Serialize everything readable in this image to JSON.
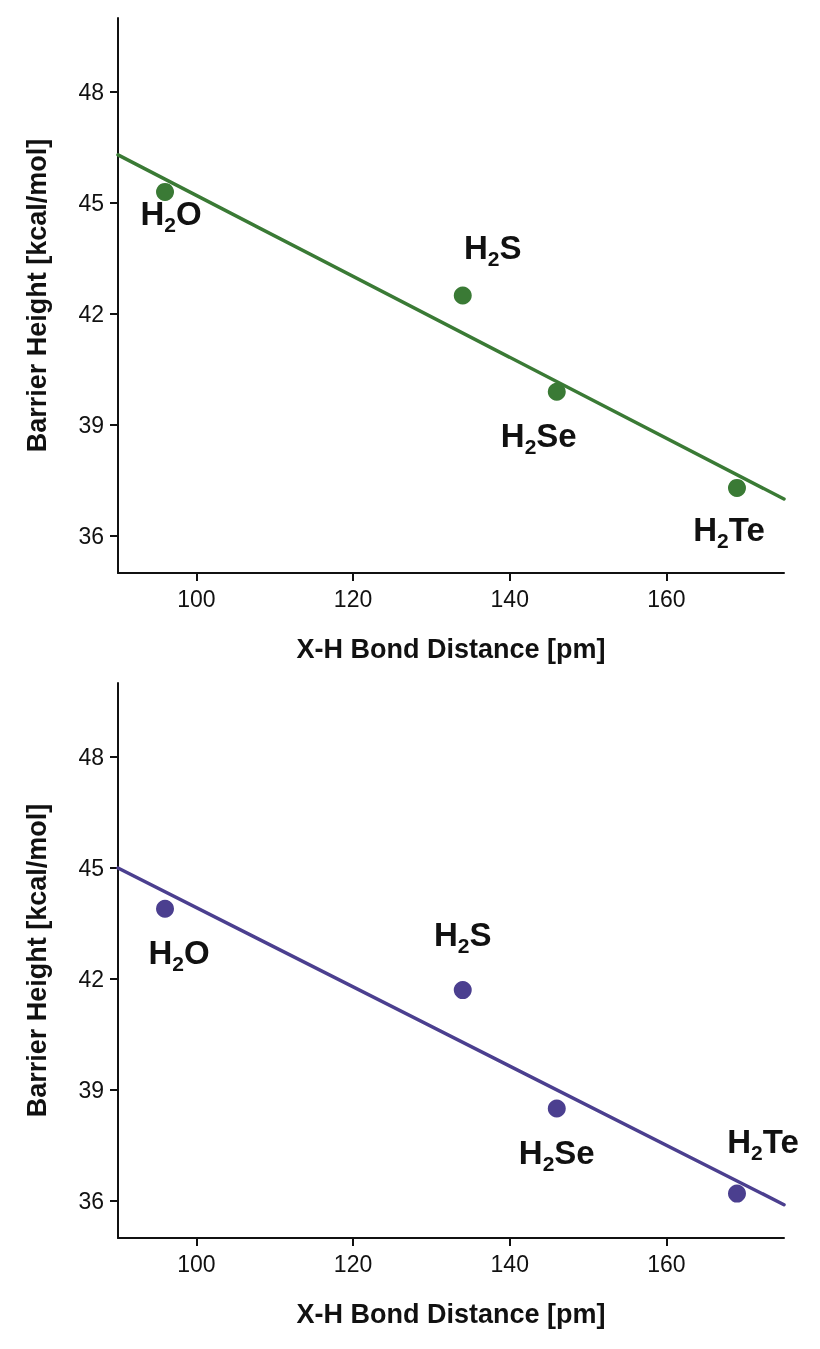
{
  "chart_data": [
    {
      "type": "scatter",
      "xlabel": "X-H Bond Distance [pm]",
      "ylabel": "Barrier Height [kcal/mol]",
      "xlim": [
        90,
        175
      ],
      "ylim": [
        35,
        50
      ],
      "xticks": [
        100,
        120,
        140,
        160
      ],
      "yticks": [
        36,
        39,
        42,
        45,
        48
      ],
      "grid": false,
      "marker": "circle",
      "series": [
        {
          "color": "#3a7a35",
          "x": [
            96,
            134,
            146,
            169
          ],
          "values": [
            45.3,
            42.5,
            39.9,
            37.3
          ]
        },
        {
          "type": "line",
          "color": "#3a7a35",
          "x": [
            90,
            175
          ],
          "values": [
            46.3,
            37.0
          ],
          "marker": "none",
          "line_style": "solid"
        }
      ],
      "annotations": [
        {
          "text": "H$_{2}$O",
          "x": 96,
          "y": 45.3
        },
        {
          "text": "H$_{2}$S",
          "x": 134,
          "y": 42.5
        },
        {
          "text": "H$_{2}$Se",
          "x": 146,
          "y": 39.9
        },
        {
          "text": "H$_{2}$Te",
          "x": 169,
          "y": 37.3
        }
      ]
    },
    {
      "type": "scatter",
      "xlabel": "X-H Bond Distance [pm]",
      "ylabel": "Barrier Height [kcal/mol]",
      "xlim": [
        90,
        175
      ],
      "ylim": [
        35,
        50
      ],
      "xticks": [
        100,
        120,
        140,
        160
      ],
      "yticks": [
        36,
        39,
        42,
        45,
        48
      ],
      "grid": false,
      "marker": "circle",
      "series": [
        {
          "color": "#4b3f8f",
          "x": [
            96,
            134,
            146,
            169
          ],
          "values": [
            43.9,
            41.7,
            38.5,
            36.2
          ]
        },
        {
          "type": "line",
          "color": "#4b3f8f",
          "x": [
            90,
            175
          ],
          "values": [
            45.0,
            35.9
          ],
          "marker": "none",
          "line_style": "solid"
        }
      ],
      "annotations": [
        {
          "text": "H$_{2}$O",
          "x": 96,
          "y": 43.9
        },
        {
          "text": "H$_{2}$S",
          "x": 134,
          "y": 41.7
        },
        {
          "text": "H$_{2}$Se",
          "x": 146,
          "y": 38.5
        },
        {
          "text": "H$_{2}$Te",
          "x": 169,
          "y": 36.2
        }
      ]
    }
  ]
}
